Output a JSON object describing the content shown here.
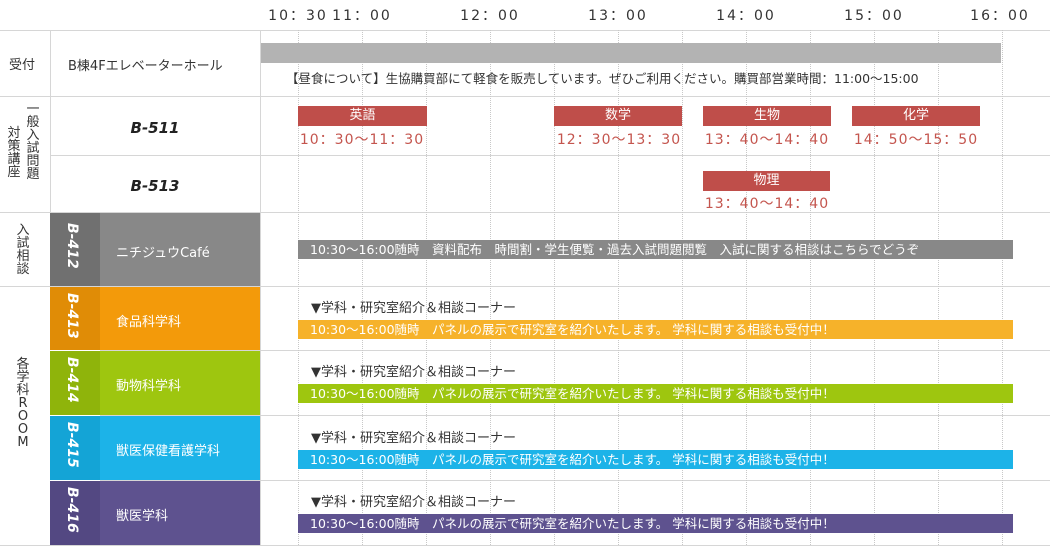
{
  "header": {
    "times": [
      "10：30",
      "11：00",
      "12：00",
      "13：00",
      "14：00",
      "15：00",
      "16：00"
    ]
  },
  "rows": {
    "reception": {
      "label": "受付",
      "place": "B棟4Fエレベーターホール",
      "note": "【昼食について】生協購買部にて軽食を販売しています。ぜひご利用ください。購買部営業時間：11:00〜15:00"
    },
    "general_exam": {
      "label": "一般入試問題対策講座",
      "rooms": [
        {
          "name": "B-511",
          "subjects": [
            {
              "name": "英語",
              "time": "10：30〜11：30"
            },
            {
              "name": "数学",
              "time": "12：30〜13：30"
            },
            {
              "name": "生物",
              "time": "13：40〜14：40"
            },
            {
              "name": "化学",
              "time": "14：50〜15：50"
            }
          ]
        },
        {
          "name": "B-513",
          "subjects": [
            {
              "name": "物理",
              "time": "13：40〜14：40"
            }
          ]
        }
      ]
    },
    "consult": {
      "label": "入試相談",
      "room": "B-412",
      "place": "ニチジュウCafé",
      "bar": "10:30〜16:00随時　資料配布　時間割・学生便覧・過去入試問題閲覧　入試に関する相談はこちらでどうぞ"
    },
    "dept_room": {
      "label": "各学科ROOM",
      "heading": "▼学科・研究室紹介＆相談コーナー",
      "bar": "10:30〜16:00随時　パネルの展示で研究室を紹介いたします。 学科に関する相談も受付中！",
      "items": [
        {
          "room": "B-413",
          "name": "食品科学科"
        },
        {
          "room": "B-414",
          "name": "動物科学科"
        },
        {
          "room": "B-415",
          "name": "獣医保健看護学科"
        },
        {
          "room": "B-416",
          "name": "獣医学科"
        }
      ]
    }
  },
  "colors": {
    "gray_bar": "#b3b3b3",
    "subject_red": "#bf4e4a",
    "consult_gray": "#888888",
    "food_orange": "#f39a0a",
    "food_bar": "#f6b22a",
    "animal_green": "#9ec60f",
    "nurse_blue": "#1cb3e8",
    "vet_purple": "#5e528f",
    "room_dark": "#707070"
  }
}
